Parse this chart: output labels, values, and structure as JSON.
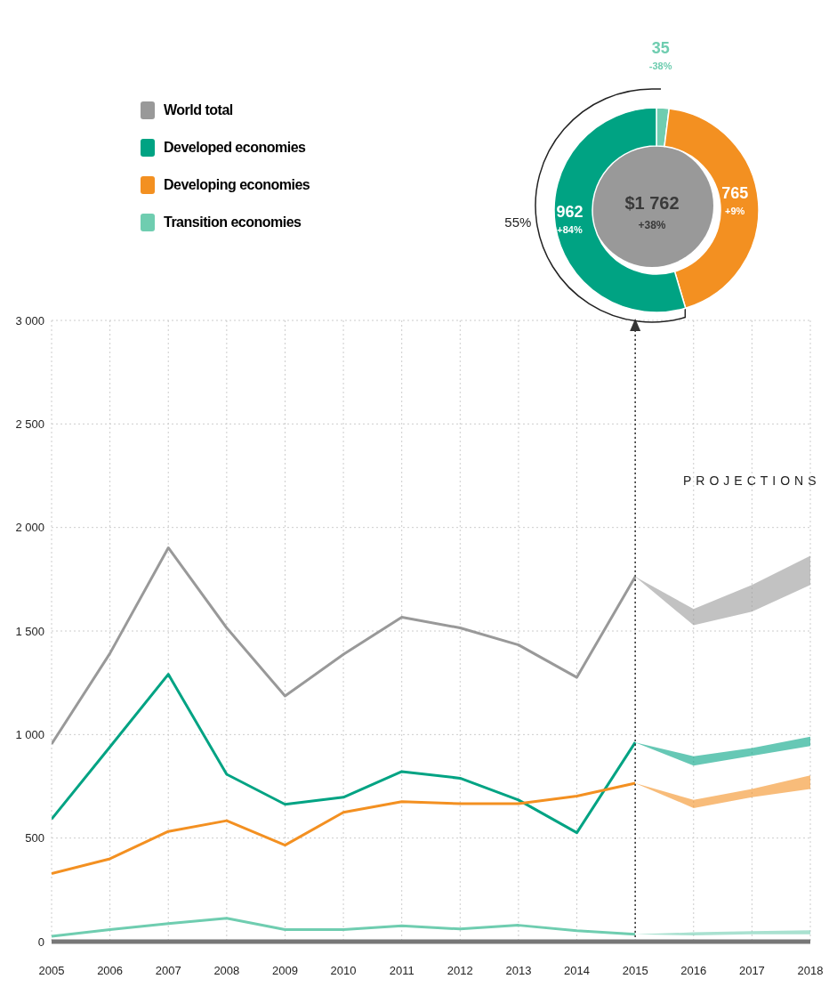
{
  "chart_data": [
    {
      "type": "line",
      "x": [
        2005,
        2006,
        2007,
        2008,
        2009,
        2010,
        2011,
        2012,
        2013,
        2014,
        2015,
        2016,
        2017,
        2018
      ],
      "xlim": [
        2005,
        2018
      ],
      "xticks": [
        2005,
        2006,
        2007,
        2008,
        2009,
        2010,
        2011,
        2012,
        2013,
        2014,
        2015,
        2016,
        2017,
        2018
      ],
      "ylim": [
        0,
        3000
      ],
      "yticks": [
        {
          "value": 0,
          "label": "0"
        },
        {
          "value": 500,
          "label": "500"
        },
        {
          "value": 1000,
          "label": "1 000"
        },
        {
          "value": 1500,
          "label": "1 500"
        },
        {
          "value": 2000,
          "label": "2 000"
        },
        {
          "value": 2500,
          "label": "2 500"
        },
        {
          "value": 3000,
          "label": "3 000"
        }
      ],
      "grid": true,
      "legend": "top left",
      "line_style": "solid",
      "annotations": [
        "PROJECTIONS"
      ],
      "ref_lines": [
        {
          "axis": "x",
          "value": 2015,
          "line_style": "dotted",
          "color": "#333333"
        }
      ],
      "series": [
        {
          "name": "World total",
          "color": "#999999",
          "values": [
            954,
            1392,
            1902,
            1515,
            1186,
            1387,
            1567,
            1515,
            1433,
            1276,
            1762,
            null,
            null,
            null
          ],
          "lower": [
            null,
            null,
            null,
            null,
            null,
            null,
            null,
            null,
            null,
            null,
            1762,
            1528,
            1593,
            1722
          ],
          "upper": [
            null,
            null,
            null,
            null,
            null,
            null,
            null,
            null,
            null,
            null,
            1762,
            1606,
            1722,
            1863
          ]
        },
        {
          "name": "Developed economies",
          "color": "#00a383",
          "values": [
            592,
            940,
            1291,
            808,
            663,
            697,
            821,
            789,
            684,
            526,
            962,
            null,
            null,
            null
          ],
          "lower": [
            null,
            null,
            null,
            null,
            null,
            null,
            null,
            null,
            null,
            null,
            962,
            850,
            897,
            945
          ],
          "upper": [
            null,
            null,
            null,
            null,
            null,
            null,
            null,
            null,
            null,
            null,
            962,
            895,
            935,
            990
          ]
        },
        {
          "name": "Developing economies",
          "color": "#f39021",
          "values": [
            329,
            400,
            532,
            584,
            466,
            624,
            676,
            666,
            666,
            703,
            765,
            null,
            null,
            null
          ],
          "lower": [
            null,
            null,
            null,
            null,
            null,
            null,
            null,
            null,
            null,
            null,
            765,
            645,
            697,
            737
          ],
          "upper": [
            null,
            null,
            null,
            null,
            null,
            null,
            null,
            null,
            null,
            null,
            765,
            684,
            737,
            803
          ]
        },
        {
          "name": "Transition economies",
          "color": "#6fcdb0",
          "values": [
            26,
            58,
            87,
            113,
            58,
            58,
            76,
            61,
            79,
            53,
            35,
            null,
            null,
            null
          ],
          "lower": [
            null,
            null,
            null,
            null,
            null,
            null,
            null,
            null,
            null,
            null,
            35,
            30,
            35,
            35
          ],
          "upper": [
            null,
            null,
            null,
            null,
            null,
            null,
            null,
            null,
            null,
            null,
            35,
            45,
            50,
            55
          ]
        }
      ]
    },
    {
      "type": "donut",
      "categories": [
        null,
        null,
        null
      ],
      "values": [
        35,
        765,
        962
      ],
      "colors": [
        "#6fcdb0",
        "#f39021",
        "#00a383"
      ],
      "data_labels": true,
      "annotations": [
        "-38%",
        "+9%",
        "+84%",
        "$1 762",
        "+38%",
        "55%"
      ]
    }
  ]
}
